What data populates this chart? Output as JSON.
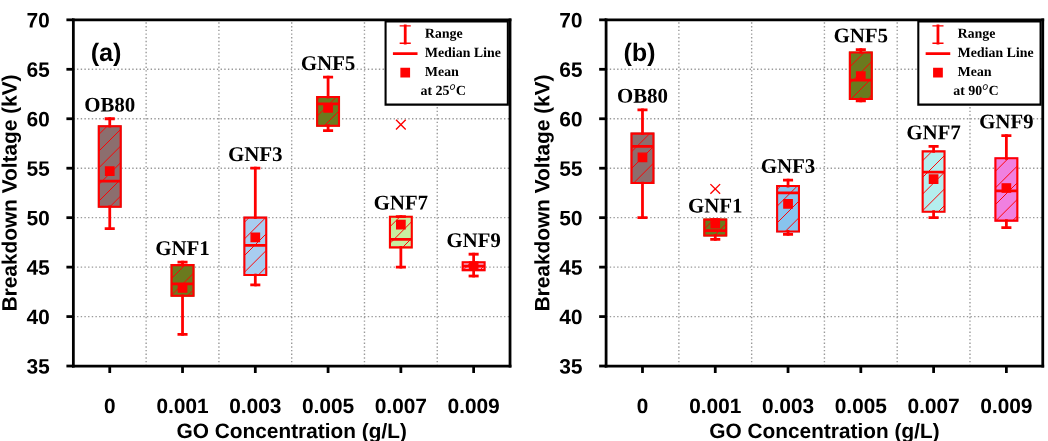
{
  "chart_data": [
    {
      "type": "box",
      "xlabel": "GO Concentration (g/L)",
      "ylabel": "Breakdown Voltage (kV)",
      "categories": [
        "0",
        "0.001",
        "0.003",
        "0.005",
        "0.007",
        "0.009"
      ],
      "ylim": [
        35,
        70
      ],
      "yticks": [
        35,
        40,
        45,
        50,
        55,
        60,
        65,
        70
      ],
      "grid": true,
      "colors": [
        "#8c6e6e",
        "#6b7a1e",
        "#a8cdf0",
        "#6b7a1e",
        "#c8eea0",
        "#f0a8c8"
      ],
      "boxes": [
        {
          "low": 48.9,
          "q1": 51.1,
          "median": 53.7,
          "q3": 59.25,
          "high": 60.0,
          "mean": 54.7
        },
        {
          "low": 38.2,
          "q1": 42.1,
          "median": 43.3,
          "q3": 45.2,
          "high": 45.5,
          "mean": 42.9
        },
        {
          "low": 43.2,
          "q1": 44.2,
          "median": 47.2,
          "q3": 50.0,
          "high": 55.0,
          "mean": 48.0
        },
        {
          "low": 58.8,
          "q1": 59.3,
          "median": 61.5,
          "q3": 62.2,
          "high": 64.2,
          "mean": 61.1
        },
        {
          "low": 45.0,
          "q1": 47.0,
          "median": 47.8,
          "q3": 50.1,
          "high": 50.1,
          "mean": 49.3,
          "outliers": [
            59.4
          ]
        },
        {
          "low": 44.1,
          "q1": 44.7,
          "median": 45.1,
          "q3": 45.5,
          "high": 46.3,
          "mean": 45.1
        }
      ],
      "annotations": [
        "(a)",
        "Range",
        "Median Line",
        "Mean",
        "at 25$^{o}$C",
        "OB80",
        "GNF1",
        "GNF3",
        "GNF5",
        "GNF7",
        "GNF9"
      ]
    },
    {
      "type": "box",
      "xlabel": "GO Concentration (g/L)",
      "ylabel": "Breakdown Voltage (kV)",
      "categories": [
        "0",
        "0.001",
        "0.003",
        "0.005",
        "0.007",
        "0.009"
      ],
      "ylim": [
        35,
        70
      ],
      "yticks": [
        35,
        40,
        45,
        50,
        55,
        60,
        65,
        70
      ],
      "grid": true,
      "colors": [
        "#8c6e6e",
        "#6b7a1e",
        "#88c4ee",
        "#6b7a1e",
        "#b4eeee",
        "#f080e0"
      ],
      "boxes": [
        {
          "low": 50.0,
          "q1": 53.5,
          "median": 57.2,
          "q3": 58.5,
          "high": 60.9,
          "mean": 56.1
        },
        {
          "low": 47.8,
          "q1": 48.2,
          "median": 48.7,
          "q3": 49.8,
          "high": 49.8,
          "mean": 49.4,
          "outliers": [
            52.9
          ]
        },
        {
          "low": 48.3,
          "q1": 48.6,
          "median": 52.5,
          "q3": 53.2,
          "high": 53.8,
          "mean": 51.4
        },
        {
          "low": 61.8,
          "q1": 62.0,
          "median": 63.9,
          "q3": 66.7,
          "high": 67.0,
          "mean": 64.3
        },
        {
          "low": 50.0,
          "q1": 50.6,
          "median": 54.6,
          "q3": 56.7,
          "high": 57.2,
          "mean": 53.9
        },
        {
          "low": 49.0,
          "q1": 49.7,
          "median": 52.7,
          "q3": 56.0,
          "high": 58.3,
          "mean": 53.0
        }
      ],
      "annotations": [
        "(b)",
        "Range",
        "Median Line",
        "Mean",
        "at 90$^{o}$C",
        "OB80",
        "GNF1",
        "GNF3",
        "GNF5",
        "GNF7",
        "GNF9"
      ]
    }
  ]
}
